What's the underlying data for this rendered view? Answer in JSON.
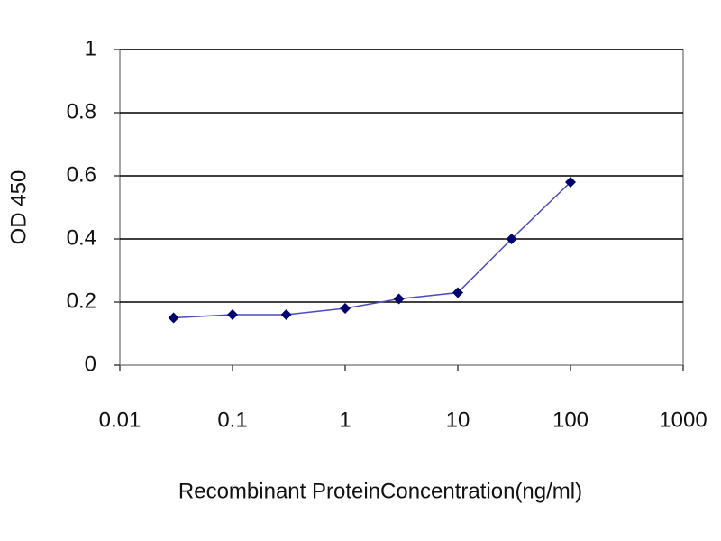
{
  "chart_data": {
    "type": "line",
    "x_label": "Recombinant ProteinConcentration(ng/ml)",
    "y_label": "OD 450",
    "x": [
      0.03,
      0.1,
      0.3,
      1,
      3,
      10,
      30,
      100
    ],
    "values": [
      0.15,
      0.16,
      0.16,
      0.18,
      0.21,
      0.23,
      0.4,
      0.58
    ],
    "marker_color": "#00006e",
    "line_color": "#4a4ac0",
    "xlim": [
      0.01,
      1000
    ],
    "xticks": [
      0.01,
      0.1,
      1,
      10,
      100,
      1000
    ],
    "x_log": true,
    "ylim": [
      0,
      1
    ],
    "yticks": [
      0,
      0.2,
      0.4,
      0.6,
      0.8,
      1
    ],
    "grid": true
  }
}
